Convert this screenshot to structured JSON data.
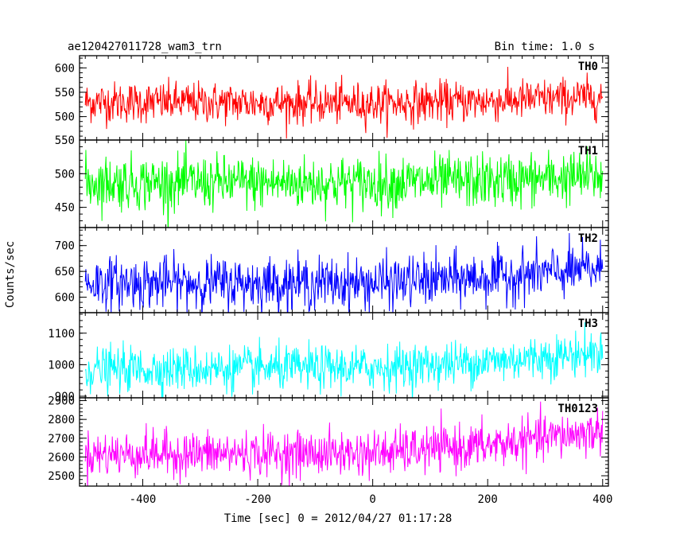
{
  "header": {
    "title": "ae120427011728_wam3_trn",
    "bin_time": "Bin time: 1.0 s"
  },
  "chart_data": {
    "type": "line",
    "xlabel": "Time [sec] 0 = 2012/04/27 01:17:28",
    "ylabel": "Counts/sec",
    "xlim": [
      -510,
      410
    ],
    "xticks": [
      -400,
      -200,
      0,
      200,
      400
    ],
    "x_start": -500,
    "x_end": 400,
    "x_step": 1,
    "panels": [
      {
        "name": "TH0",
        "color": "#ff0000",
        "ylim": [
          452,
          625
        ],
        "yticks": [
          500,
          550,
          600
        ],
        "yticklabels": [
          "500",
          "550",
          "600"
        ],
        "trend": [
          [
            -500,
            530
          ],
          [
            0,
            527
          ],
          [
            200,
            532
          ],
          [
            400,
            540
          ]
        ],
        "noise": 21
      },
      {
        "name": "TH1",
        "color": "#00ff00",
        "ylim": [
          420,
          550
        ],
        "yticks": [
          450,
          500,
          550
        ],
        "yticklabels": [
          "450",
          "500",
          "550"
        ],
        "trend": [
          [
            -500,
            487
          ],
          [
            0,
            486
          ],
          [
            200,
            489
          ],
          [
            400,
            496
          ]
        ],
        "noise": 20
      },
      {
        "name": "TH2",
        "color": "#0000ff",
        "ylim": [
          570,
          735
        ],
        "yticks": [
          600,
          650,
          700
        ],
        "yticklabels": [
          "600",
          "650",
          "700"
        ],
        "trend": [
          [
            -500,
            628
          ],
          [
            0,
            627
          ],
          [
            200,
            638
          ],
          [
            400,
            655
          ]
        ],
        "noise": 25
      },
      {
        "name": "TH3",
        "color": "#00ffff",
        "ylim": [
          895,
          1165
        ],
        "yticks": [
          900,
          1000,
          1100
        ],
        "yticklabels": [
          "900",
          "1000",
          "1100"
        ],
        "trend": [
          [
            -500,
            985
          ],
          [
            0,
            990
          ],
          [
            200,
            1010
          ],
          [
            400,
            1040
          ]
        ],
        "noise": 35
      },
      {
        "name": "TH0123",
        "color": "#ff00ff",
        "ylim": [
          2445,
          2915
        ],
        "yticks": [
          2500,
          2600,
          2700,
          2800,
          2900
        ],
        "yticklabels": [
          "2500",
          "2600",
          "2700",
          "2800",
          "2900"
        ],
        "trend": [
          [
            -500,
            2615
          ],
          [
            0,
            2620
          ],
          [
            200,
            2660
          ],
          [
            400,
            2740
          ]
        ],
        "noise": 60
      }
    ]
  }
}
